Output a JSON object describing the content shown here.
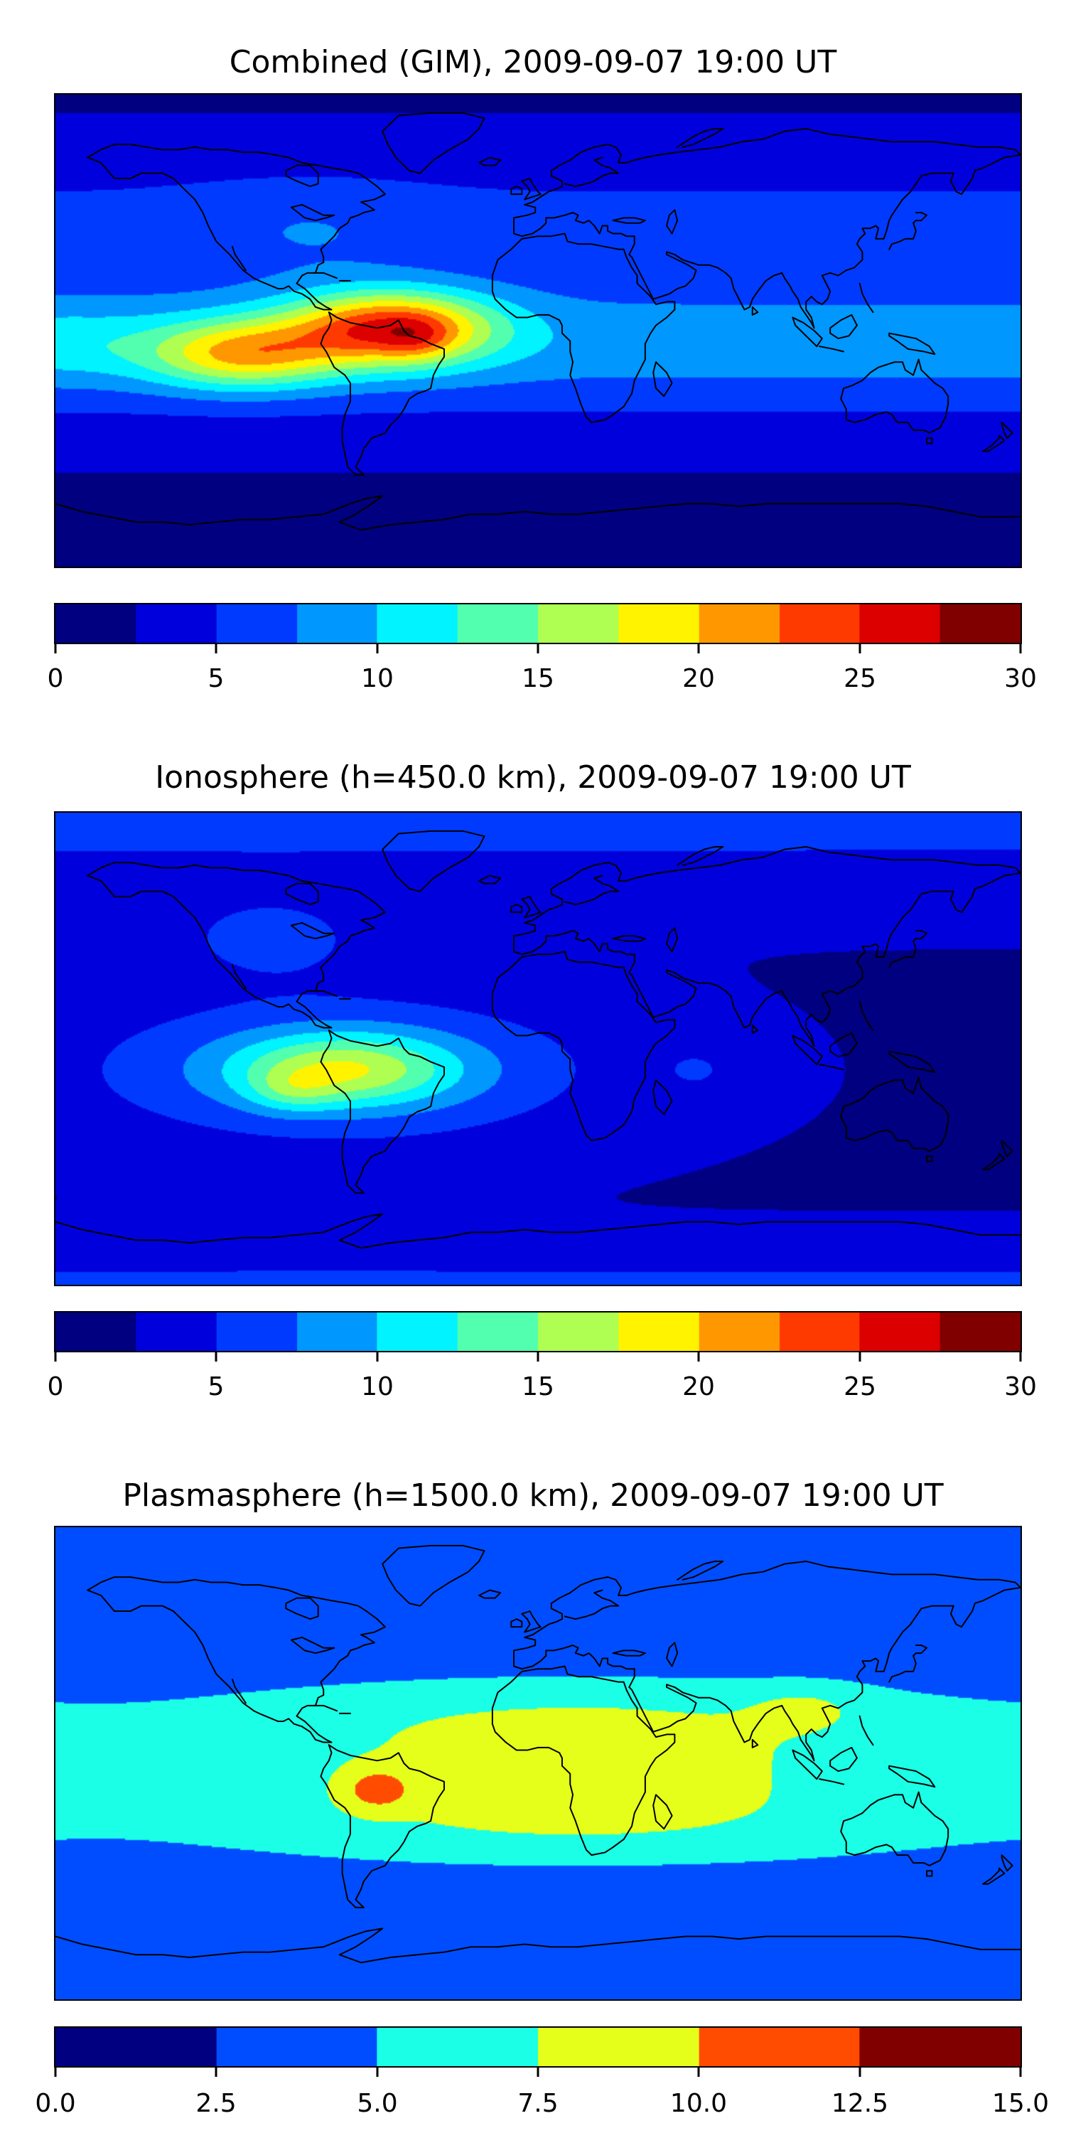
{
  "figure": {
    "background": "#ffffff",
    "frame_color": "#000000",
    "coastline_color": "#000000"
  },
  "chart_data": [
    {
      "type": "heatmap",
      "title": "Combined (GIM), 2009-09-07 19:00 UT",
      "colormap": "jet",
      "lon_range": [
        -180,
        180
      ],
      "lat_range": [
        -90,
        90
      ],
      "levels": {
        "min": 0,
        "max": 30,
        "step": 2.5
      },
      "colorbar_ticks": [
        "0",
        "5",
        "10",
        "15",
        "20",
        "25",
        "30"
      ],
      "colorbar_tick_values": [
        0,
        5,
        10,
        15,
        20,
        25,
        30
      ],
      "field_model": {
        "background": 2.2,
        "bands": [
          {
            "amp": 6.5,
            "lat0": -5,
            "sigma": 28,
            "power": 2
          },
          {
            "amp": 3.0,
            "lat0": 45,
            "sigma": 25,
            "power": 2
          }
        ],
        "blobs": [
          {
            "amp": 17,
            "lon0": -55,
            "lat0": 1,
            "slon": 38,
            "slat": 14
          },
          {
            "amp": 12,
            "lon0": -110,
            "lat0": -9,
            "slon": 35,
            "slat": 13
          },
          {
            "amp": 3,
            "lon0": -45,
            "lat0": -3,
            "slon": 12,
            "slat": 8
          },
          {
            "amp": 3,
            "lon0": -180,
            "lat0": -5,
            "slon": 40,
            "slat": 14
          },
          {
            "amp": 2,
            "lon0": -85,
            "lat0": 38,
            "slon": 45,
            "slat": 18
          }
        ]
      }
    },
    {
      "type": "heatmap",
      "title": "Ionosphere  (h=450.0 km), 2009-09-07 19:00 UT",
      "colormap": "jet",
      "lon_range": [
        -180,
        180
      ],
      "lat_range": [
        -90,
        90
      ],
      "levels": {
        "min": 0,
        "max": 30,
        "step": 2.5
      },
      "colorbar_ticks": [
        "0",
        "5",
        "10",
        "15",
        "20",
        "25",
        "30"
      ],
      "colorbar_tick_values": [
        0,
        5,
        10,
        15,
        20,
        25,
        30
      ],
      "field_model": {
        "background": 2.3,
        "bands": [
          {
            "amp": 5.2,
            "lat0": -8,
            "sigma": 30,
            "power": 2,
            "lon_gauss": {
              "lon0": -75,
              "sigma": 105
            }
          },
          {
            "amp": 3.2,
            "lat0": 88,
            "sigma": 30,
            "power": 2
          },
          {
            "amp": 2.8,
            "lat0": -88,
            "sigma": 16,
            "power": 2
          }
        ],
        "blobs": [
          {
            "amp": 10.5,
            "lon0": -72,
            "lat0": -8,
            "slon": 42,
            "slat": 14
          },
          {
            "amp": 3.5,
            "lon0": -92,
            "lat0": -16,
            "slon": 16,
            "slat": 8
          },
          {
            "amp": 3.0,
            "lon0": -100,
            "lat0": 42,
            "slon": 40,
            "slat": 16
          },
          {
            "amp": 2.0,
            "lon0": 60,
            "lat0": -8,
            "slon": 16,
            "slat": 10
          }
        ]
      }
    },
    {
      "type": "heatmap",
      "title": "Plasmasphere (h=1500.0 km), 2009-09-07 19:00 UT",
      "colormap": "jet",
      "lon_range": [
        -180,
        180
      ],
      "lat_range": [
        -90,
        90
      ],
      "levels": {
        "min": 0,
        "max": 15,
        "step": 2.5
      },
      "colorbar_ticks": [
        "0.0",
        "2.5",
        "5.0",
        "7.5",
        "10.0",
        "12.5",
        "15.0"
      ],
      "colorbar_tick_values": [
        0,
        2.5,
        5,
        7.5,
        10,
        12.5,
        15
      ],
      "field_model": {
        "background": 3.0,
        "bands": [
          {
            "amp": 5.2,
            "lat0": -3,
            "sigma": 36,
            "power": 4,
            "lon_cos": {
              "base": 0.78,
              "amp": 0.28,
              "phase": 15
            }
          }
        ],
        "blobs": [
          {
            "amp": 4.2,
            "lon0": -60,
            "lat0": -10,
            "slon": 13,
            "slat": 8
          },
          {
            "amp": 1.8,
            "lon0": 100,
            "lat0": 22,
            "slon": 22,
            "slat": 9
          }
        ]
      }
    }
  ]
}
